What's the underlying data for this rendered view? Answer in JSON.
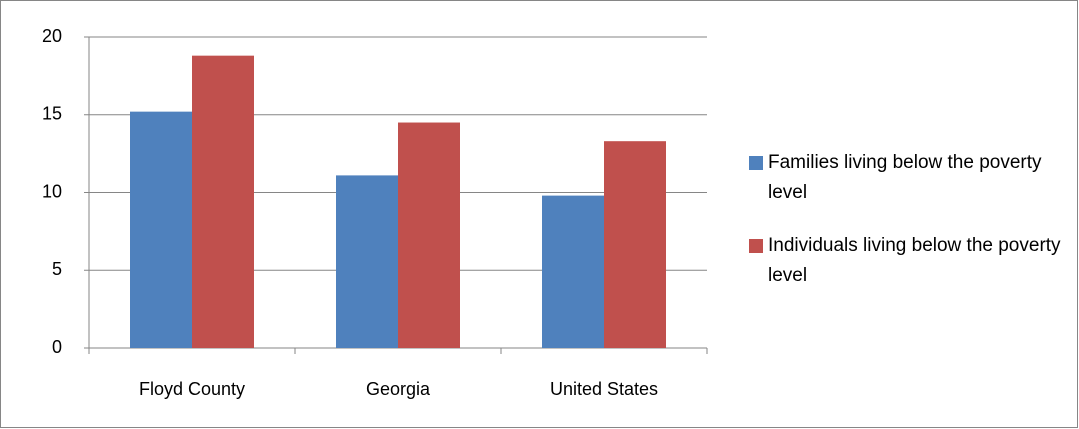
{
  "chart_data": {
    "type": "bar",
    "categories": [
      "Floyd County",
      "Georgia",
      "United States"
    ],
    "series": [
      {
        "name": "Families living below the poverty level",
        "color": "#4f81bd",
        "values": [
          15.2,
          11.1,
          9.8
        ]
      },
      {
        "name": "Individuals living below the poverty level",
        "color": "#c0504d",
        "values": [
          18.8,
          14.5,
          13.3
        ]
      }
    ],
    "ylim": [
      0,
      20
    ],
    "yticks": [
      0,
      5,
      10,
      15,
      20
    ],
    "grid": true,
    "legend": "right"
  }
}
